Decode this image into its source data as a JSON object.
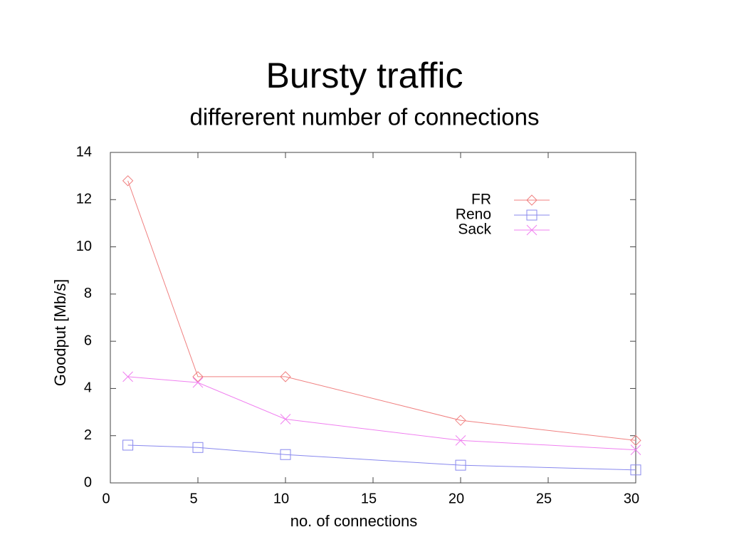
{
  "chart_data": {
    "type": "line",
    "title": "Bursty traffic",
    "subtitle": "differerent number of connections",
    "x_label": "no. of connections",
    "y_label": "Goodput [Mb/s]",
    "x": [
      1,
      5,
      10,
      20,
      30
    ],
    "series": [
      {
        "name": "FR",
        "color": "#f08080",
        "marker": "diamond",
        "values": [
          12.8,
          4.5,
          4.5,
          2.65,
          1.8
        ]
      },
      {
        "name": "Reno",
        "color": "#8888ee",
        "marker": "square",
        "values": [
          1.6,
          1.5,
          1.2,
          0.75,
          0.55
        ]
      },
      {
        "name": "Sack",
        "color": "#f080f0",
        "marker": "cross",
        "values": [
          4.5,
          4.25,
          2.7,
          1.8,
          1.4
        ]
      }
    ],
    "xlim": [
      0,
      30
    ],
    "xticks": [
      0,
      5,
      10,
      15,
      20,
      25,
      30
    ],
    "ylim": [
      0,
      14
    ],
    "yticks": [
      0,
      2,
      4,
      6,
      8,
      10,
      12,
      14
    ],
    "legend": "top-right"
  }
}
